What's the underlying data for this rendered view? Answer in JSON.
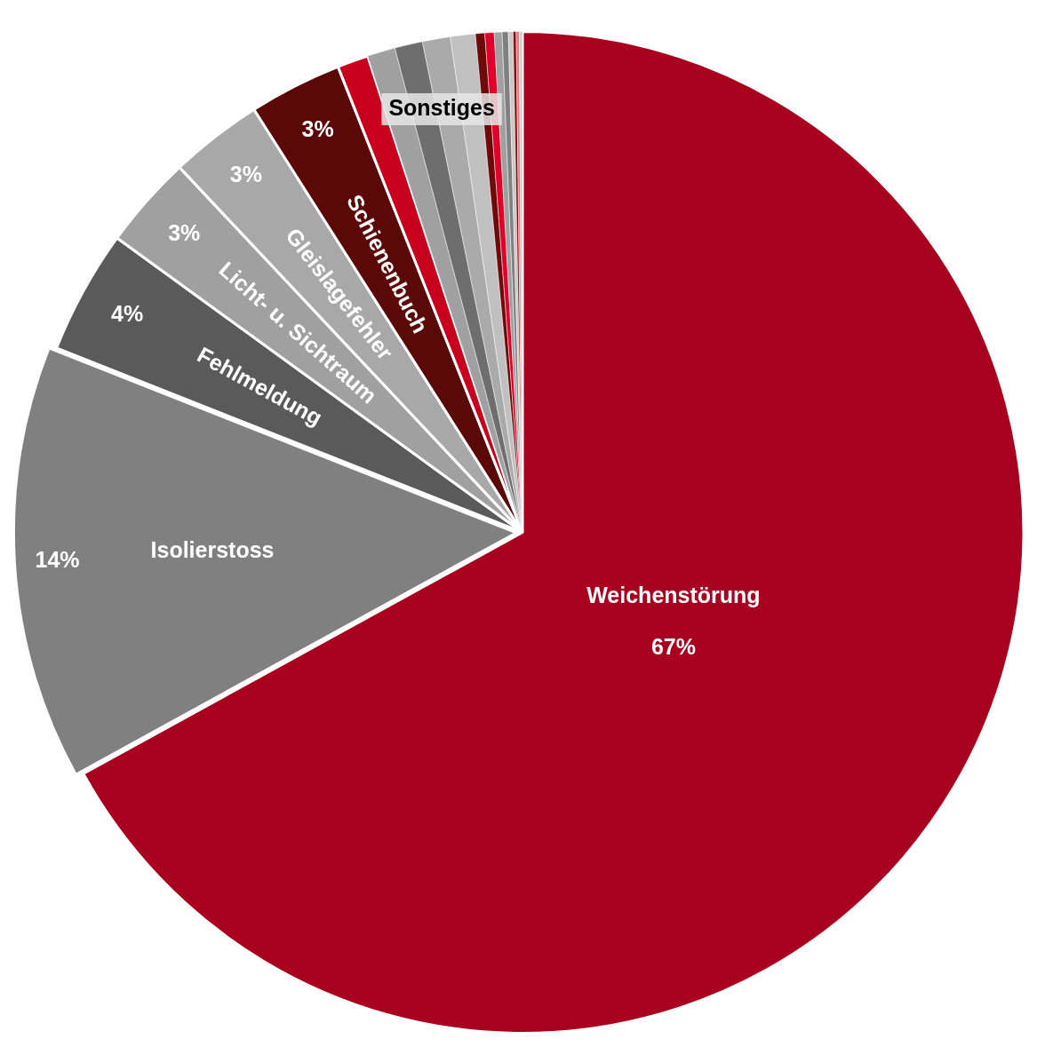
{
  "chart_data": {
    "type": "pie",
    "categories": [
      "Weichenstörung",
      "Isolierstoss",
      "Fehlmeldung",
      "Licht- u. Sichtraum",
      "Gleislagefehler",
      "Schienenbuch",
      null,
      null,
      null,
      null,
      null,
      null,
      null,
      null,
      null,
      null,
      null,
      null,
      null
    ],
    "values": [
      67,
      14,
      4,
      3,
      3,
      3,
      1,
      0.9,
      0.9,
      0.9,
      0.8,
      0.3,
      0.3,
      0.25,
      0.2,
      0.15,
      0.1,
      0.1,
      0.1
    ],
    "colors": [
      "#a8001e",
      "#808080",
      "#5a5a5a",
      "#a0a0a0",
      "#a8a8a8",
      "#5a0808",
      "#c8001e",
      "#a0a0a0",
      "#6e6e6e",
      "#aaaaaa",
      "#c0c0c0",
      "#6e0a0a",
      "#e0002a",
      "#a0a0a0",
      "#808080",
      "#c8c8c8",
      "#8a0a0a",
      "#e87880",
      "#d0d0d0"
    ],
    "value_labels": [
      "67%",
      "14%",
      "4%",
      "3%",
      "3%",
      "3%",
      null,
      null,
      null,
      null,
      null,
      null,
      null,
      null,
      null,
      null,
      null,
      null,
      null
    ],
    "annotations": [
      "Sonstiges"
    ],
    "legend": false
  }
}
